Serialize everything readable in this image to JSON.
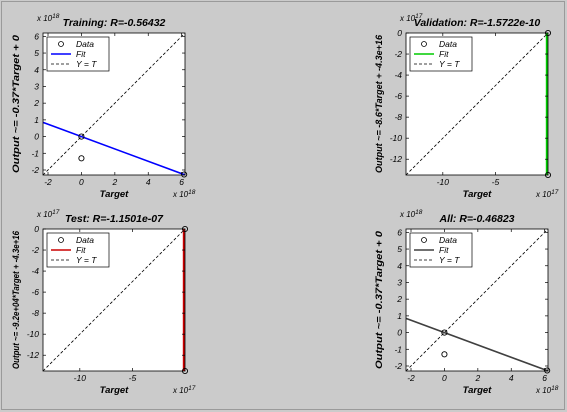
{
  "chart_data": [
    {
      "type": "scatter",
      "title": "Training: R=-0.56432",
      "xlabel": "Target",
      "ylabel": "Output ~= -0.37*Target + 0",
      "x_multiplier": "x 10",
      "x_multiplier_exp": "18",
      "y_multiplier": "x 10",
      "y_multiplier_exp": "18",
      "xlim": [
        -2.3,
        6.2
      ],
      "ylim": [
        -2.3,
        6.2
      ],
      "xticks": [
        -2,
        0,
        2,
        4,
        6
      ],
      "yticks": [
        -2,
        -1,
        0,
        1,
        2,
        3,
        4,
        5,
        6
      ],
      "points": [
        {
          "x": 0,
          "y": 0
        },
        {
          "x": 0,
          "y": -1.3
        },
        {
          "x": 6.15,
          "y": -2.27
        }
      ],
      "fit": {
        "slope": -0.37,
        "intercept": 0
      },
      "fit_color": "#0000ff",
      "legend": [
        {
          "marker": "circle",
          "label": "Data"
        },
        {
          "marker": "fit",
          "label": "Fit"
        },
        {
          "marker": "dashed",
          "label": "Y = T"
        }
      ],
      "legend_position": "top-left",
      "grid": false
    },
    {
      "type": "scatter",
      "title": "Validation: R=-1.5722e-10",
      "xlabel": "Target",
      "ylabel": "Output ~= -8.6*Target + -4.3e+16",
      "x_multiplier": "x 10",
      "x_multiplier_exp": "17",
      "y_multiplier": "x 10",
      "y_multiplier_exp": "17",
      "xlim": [
        -13.5,
        0
      ],
      "ylim": [
        -13.5,
        0
      ],
      "xticks": [
        -10,
        -5
      ],
      "yticks": [
        -12,
        -10,
        -8,
        -6,
        -4,
        -2,
        0
      ],
      "points": [
        {
          "x": 0,
          "y": 0
        },
        {
          "x": 0,
          "y": -13.5
        }
      ],
      "fit": {
        "type": "vertical",
        "x": 0
      },
      "fit_color": "#00cc00",
      "legend": [
        {
          "marker": "circle",
          "label": "Data"
        },
        {
          "marker": "fit",
          "label": "Fit"
        },
        {
          "marker": "dashed",
          "label": "Y = T"
        }
      ],
      "legend_position": "top-left",
      "grid": false
    },
    {
      "type": "scatter",
      "title": "Test: R=-1.1501e-07",
      "xlabel": "Target",
      "ylabel": "Output ~= -9.2e+04*Target + -4.3e+16",
      "x_multiplier": "x 10",
      "x_multiplier_exp": "17",
      "y_multiplier": "x 10",
      "y_multiplier_exp": "17",
      "xlim": [
        -13.5,
        0
      ],
      "ylim": [
        -13.5,
        0
      ],
      "xticks": [
        -10,
        -5
      ],
      "yticks": [
        -12,
        -10,
        -8,
        -6,
        -4,
        -2,
        0
      ],
      "points": [
        {
          "x": 0,
          "y": 0
        },
        {
          "x": 0,
          "y": -13.5
        }
      ],
      "fit": {
        "type": "vertical",
        "x": 0
      },
      "fit_color": "#cc0000",
      "legend": [
        {
          "marker": "circle",
          "label": "Data"
        },
        {
          "marker": "fit",
          "label": "Fit"
        },
        {
          "marker": "dashed",
          "label": "Y = T"
        }
      ],
      "legend_position": "top-left",
      "grid": false
    },
    {
      "type": "scatter",
      "title": "All: R=-0.46823",
      "xlabel": "Target",
      "ylabel": "Output ~= -0.37*Target + 0",
      "x_multiplier": "x 10",
      "x_multiplier_exp": "18",
      "y_multiplier": "x 10",
      "y_multiplier_exp": "18",
      "xlim": [
        -2.3,
        6.2
      ],
      "ylim": [
        -2.3,
        6.2
      ],
      "xticks": [
        -2,
        0,
        2,
        4,
        6
      ],
      "yticks": [
        -2,
        -1,
        0,
        1,
        2,
        3,
        4,
        5,
        6
      ],
      "points": [
        {
          "x": 0,
          "y": 0
        },
        {
          "x": 0,
          "y": -1.3
        },
        {
          "x": 6.15,
          "y": -2.27
        }
      ],
      "fit": {
        "slope": -0.37,
        "intercept": 0
      },
      "fit_color": "#404040",
      "legend": [
        {
          "marker": "circle",
          "label": "Data"
        },
        {
          "marker": "fit",
          "label": "Fit"
        },
        {
          "marker": "dashed",
          "label": "Y = T"
        }
      ],
      "legend_position": "top-left",
      "grid": false
    }
  ]
}
